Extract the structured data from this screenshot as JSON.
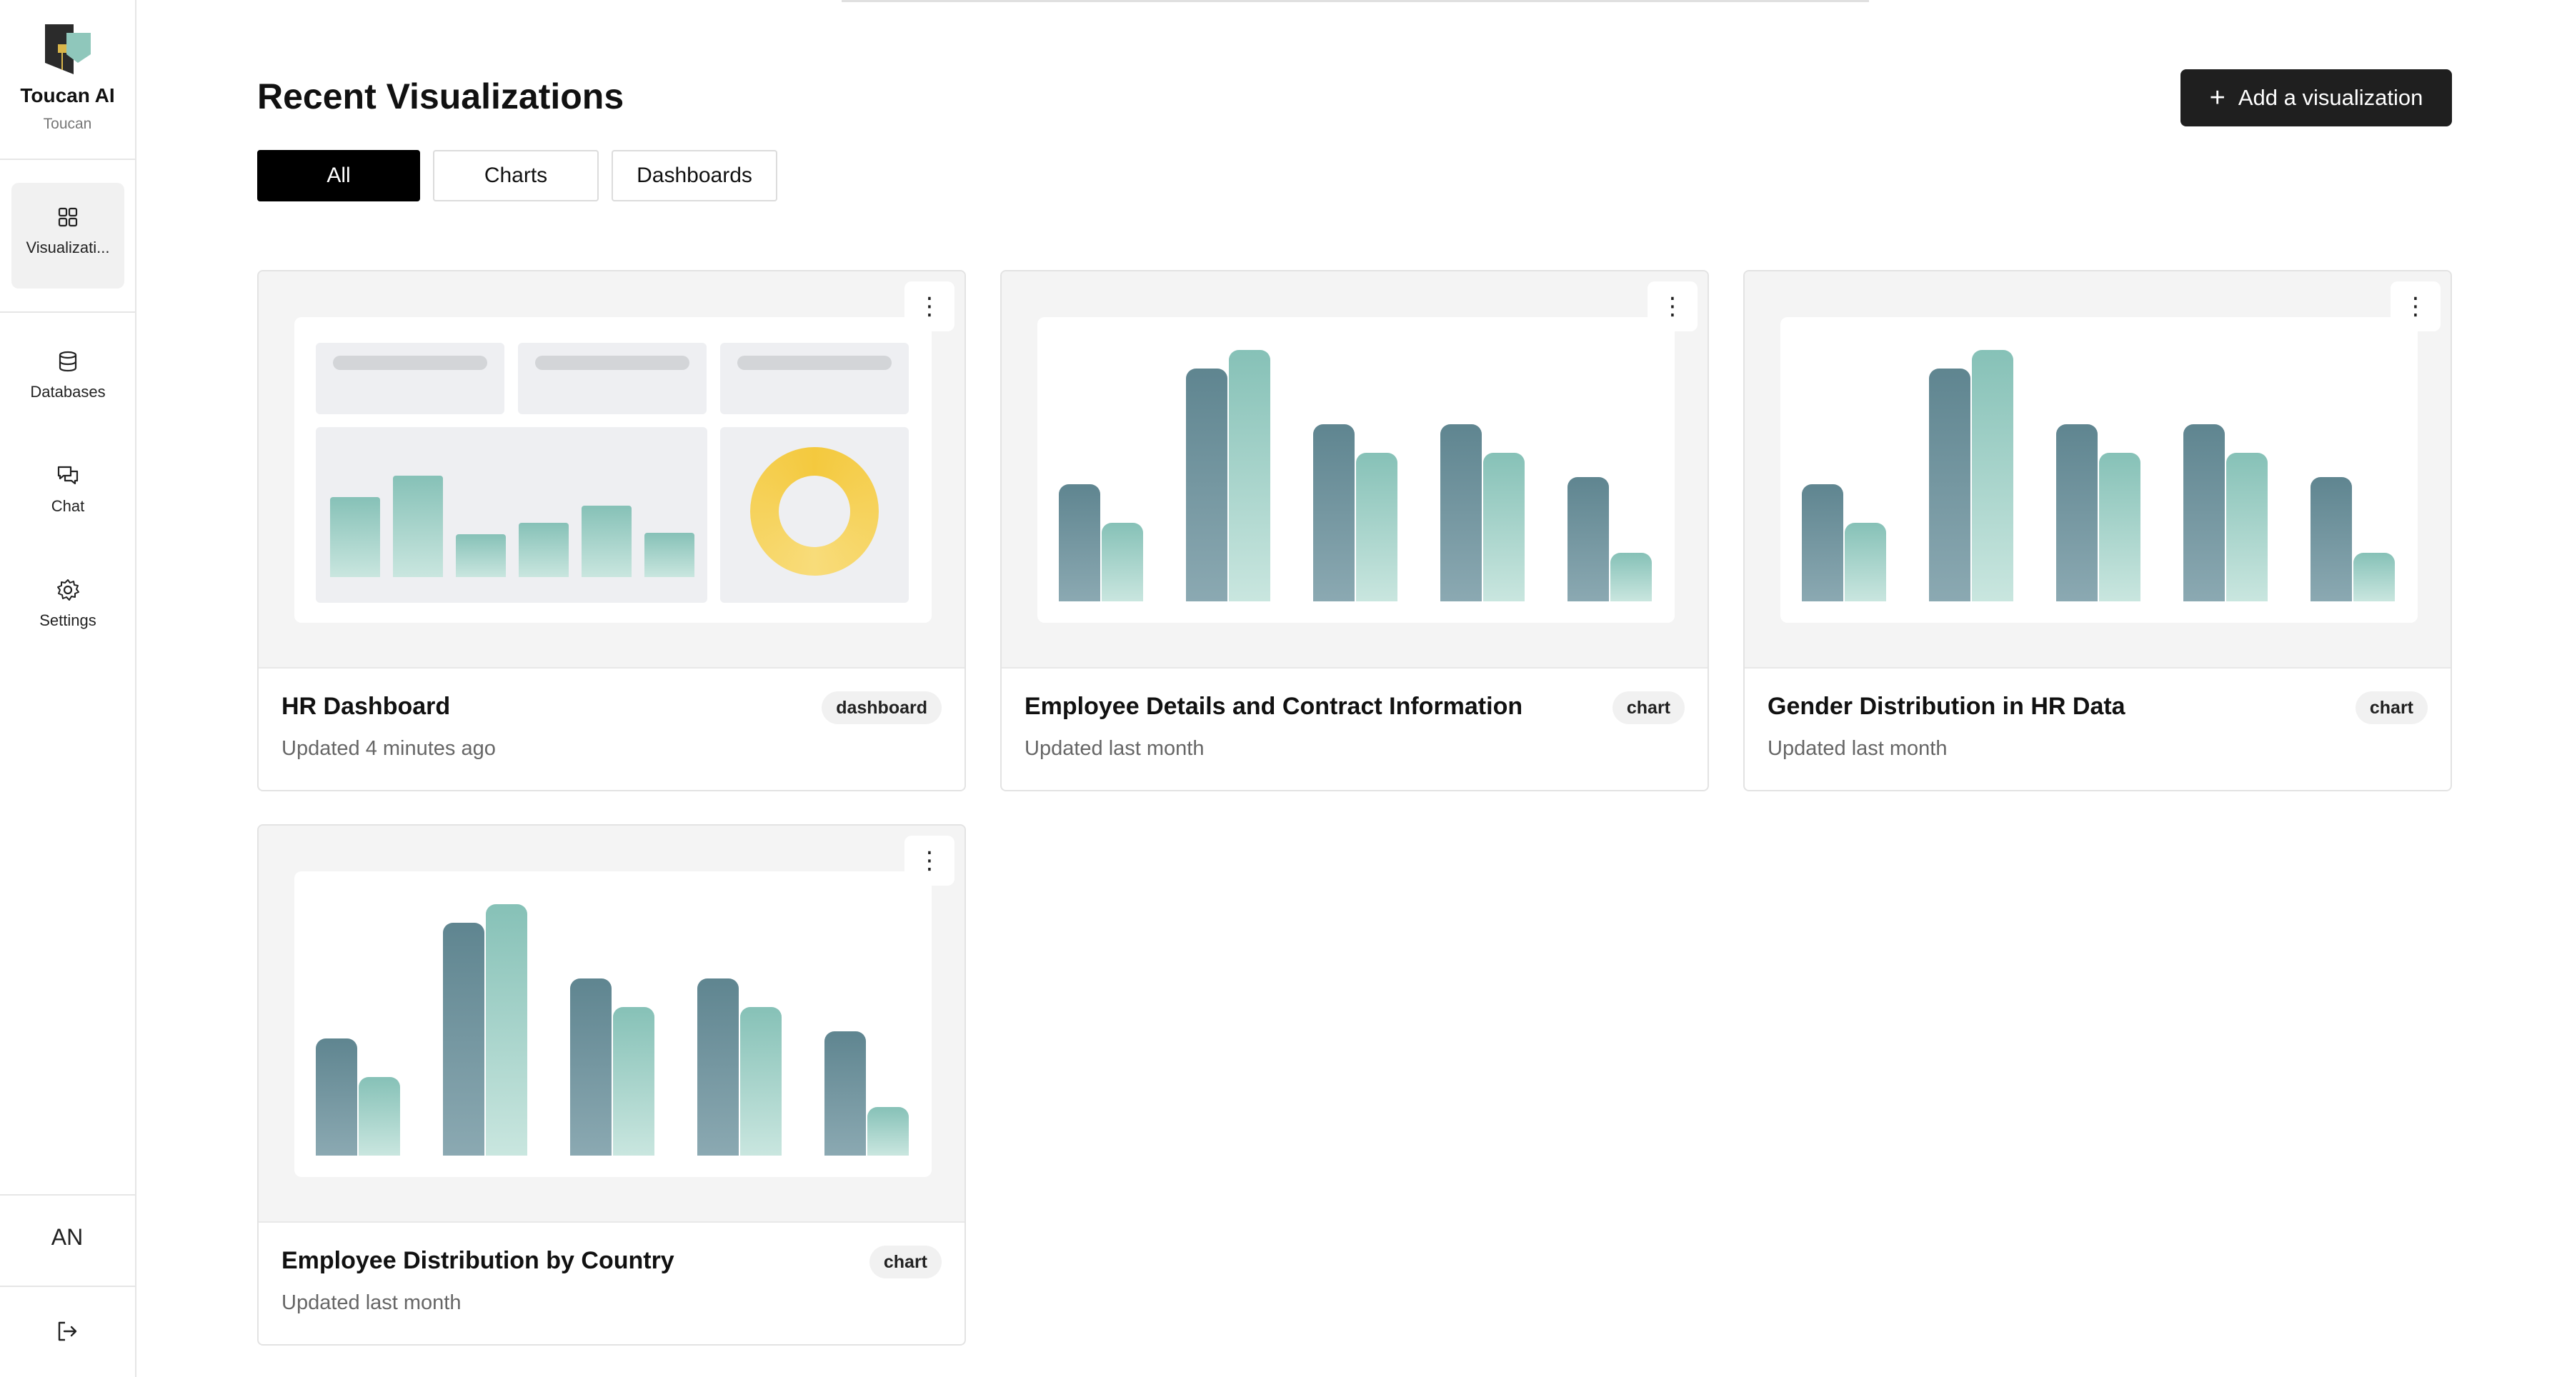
{
  "brand": {
    "name": "Toucan AI",
    "sub": "Toucan"
  },
  "sidebar": {
    "items": [
      {
        "label": "Visualizati...",
        "icon": "grid-icon",
        "active": true
      },
      {
        "label": "Databases",
        "icon": "database-icon",
        "active": false
      },
      {
        "label": "Chat",
        "icon": "chat-icon",
        "active": false
      },
      {
        "label": "Settings",
        "icon": "gear-icon",
        "active": false
      }
    ],
    "avatar": "AN",
    "logout_icon": "logout-icon"
  },
  "header": {
    "title": "Recent Visualizations",
    "add_label": "Add a visualization"
  },
  "tabs": [
    {
      "label": "All",
      "active": true
    },
    {
      "label": "Charts",
      "active": false
    },
    {
      "label": "Dashboards",
      "active": false
    }
  ],
  "cards": [
    {
      "title": "HR Dashboard",
      "meta": "Updated 4 minutes ago",
      "badge": "dashboard",
      "thumbnail": "dashboard"
    },
    {
      "title": "Employee Details and Contract Information",
      "meta": "Updated last month",
      "badge": "chart",
      "thumbnail": "bar-chart"
    },
    {
      "title": "Gender Distribution in HR Data",
      "meta": "Updated last month",
      "badge": "chart",
      "thumbnail": "bar-chart"
    },
    {
      "title": "Employee Distribution by Country",
      "meta": "Updated last month",
      "badge": "chart",
      "thumbnail": "bar-chart"
    }
  ],
  "colors": {
    "accent": "#1f1f1f",
    "bar_dark": "#5f8590",
    "bar_light": "#86c1b7",
    "donut": "#f4c93e"
  }
}
